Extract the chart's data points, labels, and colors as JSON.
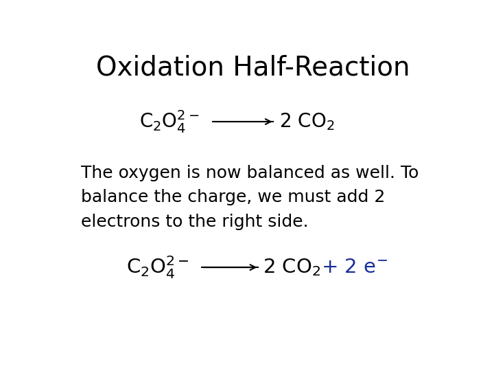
{
  "title": "Oxidation Half-Reaction",
  "title_fontsize": 28,
  "title_color": "#000000",
  "bg_color": "#ffffff",
  "body_text_line1": "The oxygen is now balanced as well. To",
  "body_text_line2": "balance the charge, we must add 2",
  "body_text_line3": "electrons to the right side.",
  "body_fontsize": 18,
  "body_color": "#000000",
  "blue_color": "#1a2e99",
  "eq_fontsize": 20,
  "eq1_left": "C",
  "eq1_right_black": "2 CO",
  "eq2_right_blue": " + 2 e",
  "arrow_color": "#000000"
}
